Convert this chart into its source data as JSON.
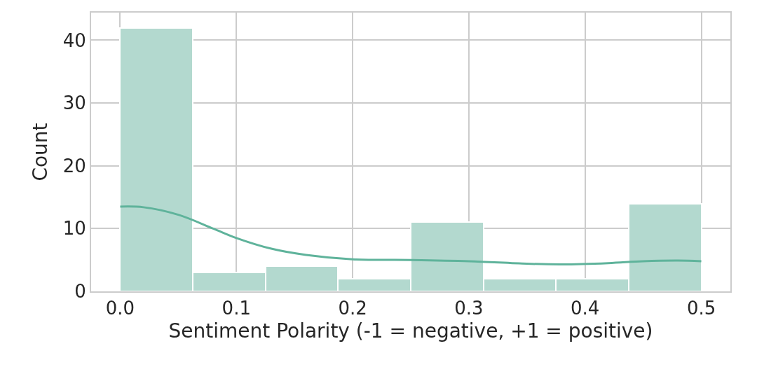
{
  "chart_data": {
    "type": "histogram",
    "xlabel": "Sentiment Polarity (-1 = negative, +1 = positive)",
    "ylabel": "Count",
    "xlim": [
      -0.025,
      0.525
    ],
    "xticks": [
      {
        "value": 0,
        "label": "0.0"
      },
      0.1,
      0.2,
      0.3,
      0.4,
      0.5
    ],
    "ylim": [
      0,
      44.4
    ],
    "yticks": [
      0,
      10,
      20,
      30,
      40
    ],
    "grid": true,
    "color": "#b3d9cf",
    "bins": [
      0,
      0.0625,
      0.125,
      0.1875,
      0.25,
      0.3125,
      0.375,
      0.4375,
      0.5
    ],
    "values": [
      42,
      3,
      4,
      2,
      11,
      2,
      2,
      14
    ],
    "series": [
      {
        "type": "line",
        "color": "#5fb39b",
        "x": [
          0,
          0.02,
          0.05,
          0.08,
          0.1,
          0.13,
          0.16,
          0.2,
          0.25,
          0.3,
          0.35,
          0.38,
          0.42,
          0.45,
          0.48,
          0.5
        ],
        "values": [
          13.5,
          13.4,
          12.2,
          10,
          8.5,
          6.8,
          5.8,
          5.1,
          5,
          4.8,
          4.4,
          4.3,
          4.5,
          4.8,
          4.9,
          4.8
        ]
      }
    ]
  }
}
